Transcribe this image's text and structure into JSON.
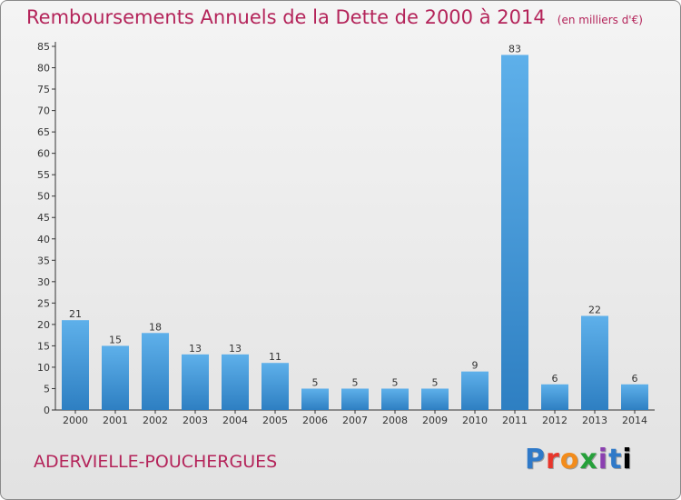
{
  "title": "Remboursements Annuels de la Dette de 2000 à 2014",
  "unit": "(en milliers d'€)",
  "place": "ADERVIELLE-POUCHERGUES",
  "logo": [
    "P",
    "r",
    "o",
    "x",
    "i",
    "t",
    "i"
  ],
  "colors": {
    "title": "#b4245a",
    "bar_top": "#5eb0ea",
    "bar_bottom": "#2e7fc2"
  },
  "chart_data": {
    "type": "bar",
    "title": "Remboursements Annuels de la Dette de 2000 à 2014",
    "xlabel": "",
    "ylabel": "",
    "categories": [
      "2000",
      "2001",
      "2002",
      "2003",
      "2004",
      "2005",
      "2006",
      "2007",
      "2008",
      "2009",
      "2010",
      "2011",
      "2012",
      "2013",
      "2014"
    ],
    "values": [
      21,
      15,
      18,
      13,
      13,
      11,
      5,
      5,
      5,
      5,
      9,
      83,
      6,
      22,
      6
    ],
    "ylim": [
      0,
      85
    ],
    "yticks": [
      0,
      5,
      10,
      15,
      20,
      25,
      30,
      35,
      40,
      45,
      50,
      55,
      60,
      65,
      70,
      75,
      80,
      85
    ],
    "grid": false,
    "legend": "none"
  }
}
